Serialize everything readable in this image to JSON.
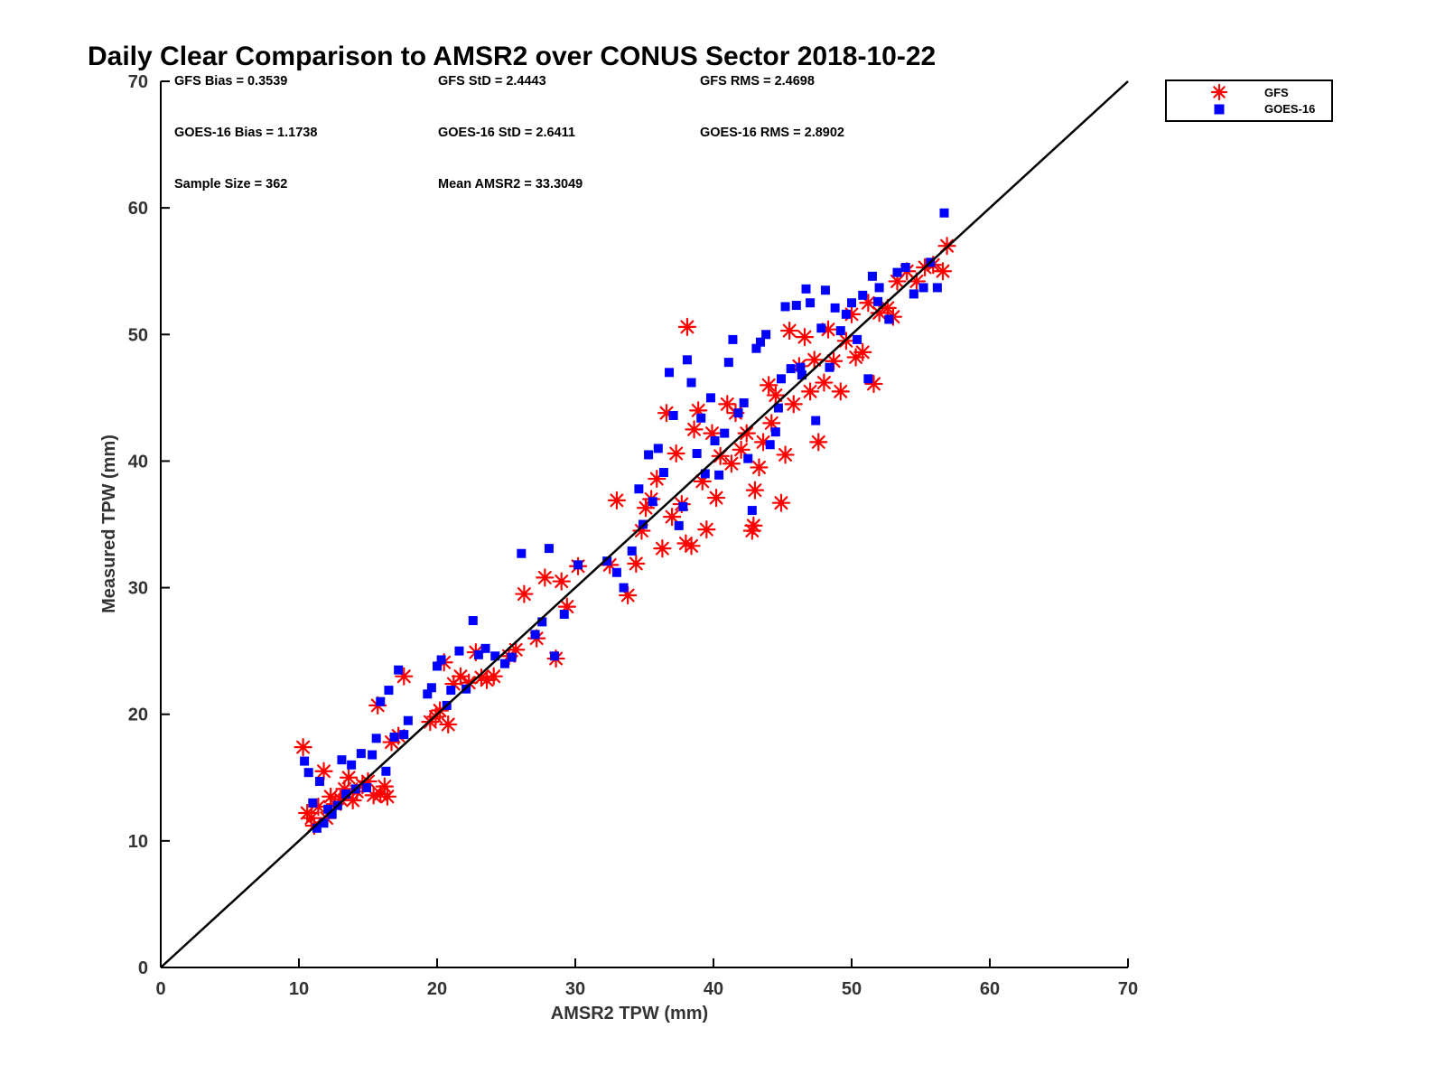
{
  "chart_data": {
    "type": "scatter",
    "title": "Daily Clear Comparison to AMSR2 over CONUS Sector 2018-10-22",
    "xlabel": "AMSR2 TPW (mm)",
    "ylabel": "Measured TPW (mm)",
    "xlim": [
      0,
      70
    ],
    "ylim": [
      0,
      70
    ],
    "x_ticks": [
      "0",
      "10",
      "20",
      "30",
      "40",
      "50",
      "60",
      "70"
    ],
    "y_ticks": [
      "0",
      "10",
      "20",
      "30",
      "40",
      "50",
      "60",
      "70"
    ],
    "grid": false,
    "legend_position": "top-right (outside plot)",
    "stats": {
      "gfs_bias": "GFS Bias = 0.3539",
      "gfs_std": "GFS StD = 2.4443",
      "gfs_rms": "GFS RMS = 2.4698",
      "goes_bias": "GOES-16 Bias = 1.1738",
      "goes_std": "GOES-16 StD = 2.6411",
      "goes_rms": "GOES-16 RMS = 2.8902",
      "sample_size": "Sample Size = 362",
      "mean_amsr2": "Mean AMSR2 = 33.3049"
    },
    "reference_line": {
      "from": [
        0,
        0
      ],
      "to": [
        70,
        70
      ],
      "color": "#000000"
    },
    "series": [
      {
        "name": "GFS",
        "marker": "asterisk",
        "color": "#ff0000",
        "points": [
          [
            10.3,
            17.4
          ],
          [
            10.6,
            12.2
          ],
          [
            10.9,
            11.8
          ],
          [
            11.1,
            11.2
          ],
          [
            11.4,
            12.7
          ],
          [
            11.8,
            15.5
          ],
          [
            12.0,
            11.8
          ],
          [
            12.3,
            13.5
          ],
          [
            12.6,
            12.9
          ],
          [
            13.0,
            13.3
          ],
          [
            13.3,
            14.1
          ],
          [
            13.6,
            15.0
          ],
          [
            13.9,
            13.2
          ],
          [
            14.2,
            13.9
          ],
          [
            14.6,
            14.4
          ],
          [
            15.0,
            14.7
          ],
          [
            15.4,
            13.6
          ],
          [
            15.7,
            20.7
          ],
          [
            15.9,
            13.7
          ],
          [
            16.2,
            14.3
          ],
          [
            16.4,
            13.5
          ],
          [
            16.7,
            17.8
          ],
          [
            17.2,
            18.3
          ],
          [
            17.6,
            23.0
          ],
          [
            19.5,
            19.4
          ],
          [
            19.9,
            19.8
          ],
          [
            20.2,
            20.3
          ],
          [
            20.5,
            24.1
          ],
          [
            20.8,
            19.2
          ],
          [
            21.2,
            22.4
          ],
          [
            21.7,
            23.0
          ],
          [
            22.3,
            22.5
          ],
          [
            22.8,
            24.9
          ],
          [
            23.2,
            22.9
          ],
          [
            23.6,
            22.7
          ],
          [
            24.1,
            23.0
          ],
          [
            25.2,
            24.6
          ],
          [
            25.7,
            25.1
          ],
          [
            26.3,
            29.5
          ],
          [
            27.2,
            26.0
          ],
          [
            27.8,
            30.8
          ],
          [
            28.6,
            24.4
          ],
          [
            29.0,
            30.5
          ],
          [
            29.4,
            28.5
          ],
          [
            30.2,
            31.7
          ],
          [
            32.5,
            31.8
          ],
          [
            33.0,
            36.9
          ],
          [
            33.8,
            29.4
          ],
          [
            34.4,
            31.9
          ],
          [
            34.8,
            34.5
          ],
          [
            35.1,
            36.3
          ],
          [
            35.5,
            37.0
          ],
          [
            35.9,
            38.6
          ],
          [
            36.3,
            33.1
          ],
          [
            36.6,
            43.8
          ],
          [
            37.0,
            35.6
          ],
          [
            37.3,
            40.6
          ],
          [
            37.7,
            36.6
          ],
          [
            38.0,
            33.5
          ],
          [
            38.1,
            50.6
          ],
          [
            38.4,
            33.3
          ],
          [
            38.6,
            42.5
          ],
          [
            38.9,
            44.0
          ],
          [
            39.2,
            38.4
          ],
          [
            39.5,
            34.6
          ],
          [
            39.9,
            42.2
          ],
          [
            40.2,
            37.1
          ],
          [
            40.5,
            40.4
          ],
          [
            41.0,
            44.5
          ],
          [
            41.3,
            39.8
          ],
          [
            41.6,
            43.8
          ],
          [
            42.0,
            40.9
          ],
          [
            42.4,
            42.2
          ],
          [
            42.8,
            34.5
          ],
          [
            42.9,
            34.9
          ],
          [
            43.0,
            37.7
          ],
          [
            43.3,
            39.5
          ],
          [
            43.6,
            41.5
          ],
          [
            44.0,
            46.0
          ],
          [
            44.2,
            43.0
          ],
          [
            44.5,
            45.2
          ],
          [
            44.9,
            36.7
          ],
          [
            45.2,
            40.5
          ],
          [
            45.5,
            50.3
          ],
          [
            45.8,
            44.5
          ],
          [
            46.2,
            47.5
          ],
          [
            46.6,
            49.8
          ],
          [
            47.0,
            45.5
          ],
          [
            47.3,
            48.0
          ],
          [
            47.6,
            41.5
          ],
          [
            48.0,
            46.2
          ],
          [
            48.3,
            50.4
          ],
          [
            48.7,
            47.9
          ],
          [
            49.2,
            45.5
          ],
          [
            49.6,
            49.5
          ],
          [
            50.0,
            51.6
          ],
          [
            50.3,
            48.2
          ],
          [
            50.8,
            48.6
          ],
          [
            51.2,
            52.5
          ],
          [
            51.6,
            46.1
          ],
          [
            52.0,
            51.7
          ],
          [
            52.6,
            52.1
          ],
          [
            53.3,
            54.2
          ],
          [
            54.0,
            55.0
          ],
          [
            54.7,
            54.2
          ],
          [
            55.3,
            55.3
          ],
          [
            55.9,
            55.5
          ],
          [
            56.6,
            55.0
          ],
          [
            56.9,
            57.0
          ],
          [
            53.0,
            51.4
          ]
        ]
      },
      {
        "name": "GOES-16",
        "marker": "square",
        "color": "#0000ff",
        "points": [
          [
            10.4,
            16.3
          ],
          [
            10.7,
            15.4
          ],
          [
            11.0,
            13.0
          ],
          [
            11.3,
            11.0
          ],
          [
            11.5,
            14.7
          ],
          [
            11.8,
            11.4
          ],
          [
            12.1,
            12.5
          ],
          [
            12.4,
            12.1
          ],
          [
            12.8,
            12.8
          ],
          [
            13.1,
            16.4
          ],
          [
            13.4,
            13.7
          ],
          [
            13.8,
            16.0
          ],
          [
            14.1,
            14.1
          ],
          [
            14.5,
            16.9
          ],
          [
            14.9,
            14.2
          ],
          [
            15.3,
            16.8
          ],
          [
            15.6,
            18.1
          ],
          [
            15.9,
            21.0
          ],
          [
            16.3,
            15.5
          ],
          [
            16.5,
            21.9
          ],
          [
            16.9,
            18.2
          ],
          [
            17.2,
            23.5
          ],
          [
            17.6,
            18.4
          ],
          [
            17.9,
            19.5
          ],
          [
            19.3,
            21.6
          ],
          [
            19.6,
            22.1
          ],
          [
            20.0,
            23.8
          ],
          [
            20.3,
            24.3
          ],
          [
            20.7,
            20.7
          ],
          [
            21.0,
            21.9
          ],
          [
            21.6,
            25.0
          ],
          [
            22.1,
            22.0
          ],
          [
            22.6,
            27.4
          ],
          [
            23.0,
            24.7
          ],
          [
            23.5,
            25.2
          ],
          [
            24.2,
            24.6
          ],
          [
            24.9,
            24.0
          ],
          [
            25.4,
            24.5
          ],
          [
            26.1,
            32.7
          ],
          [
            27.1,
            26.3
          ],
          [
            27.6,
            27.3
          ],
          [
            28.1,
            33.1
          ],
          [
            28.5,
            24.6
          ],
          [
            29.2,
            27.9
          ],
          [
            30.2,
            31.8
          ],
          [
            32.3,
            32.1
          ],
          [
            33.0,
            31.2
          ],
          [
            33.5,
            30.0
          ],
          [
            34.1,
            32.9
          ],
          [
            34.6,
            37.8
          ],
          [
            34.9,
            35.0
          ],
          [
            35.3,
            40.5
          ],
          [
            35.6,
            36.8
          ],
          [
            36.0,
            41.0
          ],
          [
            36.4,
            39.1
          ],
          [
            36.8,
            47.0
          ],
          [
            37.1,
            43.6
          ],
          [
            37.5,
            34.9
          ],
          [
            37.8,
            36.4
          ],
          [
            38.1,
            48.0
          ],
          [
            38.4,
            46.2
          ],
          [
            38.8,
            40.6
          ],
          [
            39.1,
            43.4
          ],
          [
            39.4,
            39.0
          ],
          [
            39.8,
            45.0
          ],
          [
            40.1,
            41.6
          ],
          [
            40.4,
            38.9
          ],
          [
            40.8,
            42.2
          ],
          [
            41.1,
            47.8
          ],
          [
            41.4,
            49.6
          ],
          [
            41.8,
            43.8
          ],
          [
            42.2,
            44.6
          ],
          [
            42.5,
            40.2
          ],
          [
            42.8,
            36.1
          ],
          [
            43.1,
            48.9
          ],
          [
            43.4,
            49.4
          ],
          [
            43.8,
            50.0
          ],
          [
            44.1,
            41.3
          ],
          [
            44.5,
            42.3
          ],
          [
            44.9,
            46.5
          ],
          [
            45.2,
            52.2
          ],
          [
            45.6,
            47.3
          ],
          [
            46.0,
            52.3
          ],
          [
            46.3,
            47.4
          ],
          [
            46.7,
            53.6
          ],
          [
            47.0,
            52.5
          ],
          [
            47.4,
            43.2
          ],
          [
            47.8,
            50.5
          ],
          [
            48.1,
            53.5
          ],
          [
            48.4,
            47.4
          ],
          [
            48.8,
            52.1
          ],
          [
            49.2,
            50.3
          ],
          [
            49.6,
            51.6
          ],
          [
            50.0,
            52.5
          ],
          [
            50.4,
            49.6
          ],
          [
            50.8,
            53.1
          ],
          [
            51.2,
            46.5
          ],
          [
            51.5,
            54.6
          ],
          [
            52.0,
            53.7
          ],
          [
            52.7,
            51.2
          ],
          [
            53.3,
            54.9
          ],
          [
            53.9,
            55.3
          ],
          [
            54.5,
            53.2
          ],
          [
            55.2,
            53.7
          ],
          [
            55.7,
            55.7
          ],
          [
            56.2,
            53.7
          ],
          [
            56.7,
            59.6
          ],
          [
            51.9,
            52.6
          ],
          [
            44.7,
            44.2
          ],
          [
            46.4,
            46.8
          ]
        ]
      }
    ]
  },
  "legend": [
    {
      "label": "GFS",
      "color": "#ff0000",
      "marker": "asterisk"
    },
    {
      "label": "GOES-16",
      "color": "#0000ff",
      "marker": "square"
    }
  ]
}
